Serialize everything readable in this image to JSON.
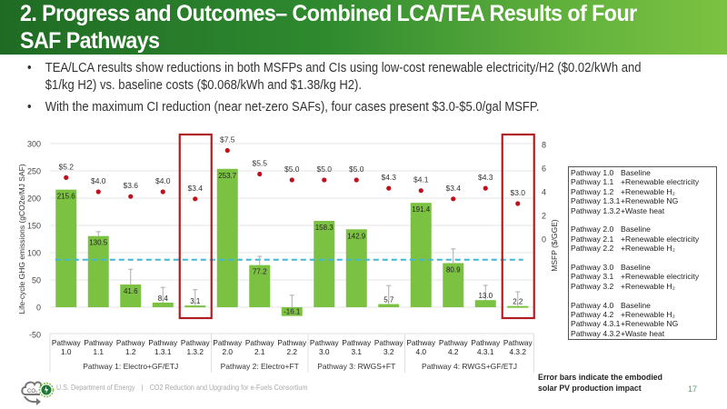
{
  "header": {
    "title_line1": "2. Progress and Outcomes– Combined LCA/TEA Results of Four",
    "title_line2": "SAF Pathways"
  },
  "bullets": [
    {
      "text": "TEA/LCA results show reductions in both MSFPs and CIs using low-cost renewable electricity/H2 ($0.02/kWh and $1/kg H2) vs. baseline costs ($0.068/kWh and $1.38/kg H2)."
    },
    {
      "text": "With the maximum CI reduction (near net-zero SAFs), four cases present $3.0-$5.0/gal MSFP."
    }
  ],
  "bullet_glyph": "•",
  "chart_data": {
    "type": "bar",
    "title": "",
    "categories": [
      "Pathway 1.0",
      "Pathway 1.1",
      "Pathway 1.2",
      "Pathway 1.3.1",
      "Pathway 1.3.2",
      "Pathway 2.0",
      "Pathway 2.1",
      "Pathway 2.2",
      "Pathway 3.0",
      "Pathway 3.1",
      "Pathway 3.2",
      "Pathway 4.0",
      "Pathway 4.2",
      "Pathway 4.3.1",
      "Pathway 4.3.2"
    ],
    "category_lines": [
      [
        "Pathway",
        "1.0"
      ],
      [
        "Pathway",
        "1.1"
      ],
      [
        "Pathway",
        "1.2"
      ],
      [
        "Pathway",
        "1.3.1"
      ],
      [
        "Pathway",
        "1.3.2"
      ],
      [
        "Pathway",
        "2.0"
      ],
      [
        "Pathway",
        "2.1"
      ],
      [
        "Pathway",
        "2.2"
      ],
      [
        "Pathway",
        "3.0"
      ],
      [
        "Pathway",
        "3.1"
      ],
      [
        "Pathway",
        "3.2"
      ],
      [
        "Pathway",
        "4.0"
      ],
      [
        "Pathway",
        "4.2"
      ],
      [
        "Pathway",
        "4.3.1"
      ],
      [
        "Pathway",
        "4.3.2"
      ]
    ],
    "groups": [
      {
        "label": "Pathway 1: Electro+GF/ETJ",
        "start": 0,
        "count": 5
      },
      {
        "label": "Pathway 2: Electro+FT",
        "start": 5,
        "count": 3
      },
      {
        "label": "Pathway 3: RWGS+FT",
        "start": 8,
        "count": 3
      },
      {
        "label": "Pathway 4: RWGS+GF/ETJ",
        "start": 11,
        "count": 4
      }
    ],
    "series": [
      {
        "name": "Life-cycle GHG emissions",
        "axis": "left",
        "kind": "bar",
        "values": [
          215.6,
          130.5,
          41.6,
          8.4,
          3.1,
          253.7,
          77.2,
          -16.1,
          158.3,
          142.9,
          5.7,
          191.4,
          80.9,
          13.0,
          2.2
        ],
        "labels": [
          "215.6",
          "130.5",
          "41.6",
          "8.4",
          "3.1",
          "253.7",
          "77.2",
          "-16.1",
          "158.3",
          "142.9",
          "5.7",
          "191.4",
          "80.9",
          "13.0",
          "2.2"
        ],
        "error_plus": [
          1,
          8,
          28,
          28,
          29,
          1,
          16,
          38,
          1,
          1,
          34,
          1,
          26,
          27,
          26
        ],
        "color": "#7cc242"
      },
      {
        "name": "MSFP",
        "axis": "right",
        "kind": "scatter",
        "values": [
          5.2,
          4.0,
          3.6,
          4.0,
          3.4,
          7.5,
          5.5,
          5.0,
          5.0,
          5.0,
          4.3,
          4.1,
          3.4,
          4.3,
          3.0
        ],
        "labels": [
          "$5.2",
          "$4.0",
          "$3.6",
          "$4.0",
          "$3.4",
          "$7.5",
          "$5.5",
          "$5.0",
          "$5.0",
          "$5.0",
          "$4.3",
          "$4.1",
          "$3.4",
          "$4.3",
          "$3.0"
        ],
        "color": "#c0101c"
      }
    ],
    "reference_line": {
      "value": 87,
      "style": "dashed",
      "color": "#3fb7d9",
      "start_index": 0,
      "end_index": 14
    },
    "highlighted_categories": [
      "Pathway 1.3.2",
      "Pathway 4.3.2"
    ],
    "highlight_color": "#b01e23",
    "ylabel": "Life-cycle GHG emissions (gCO2e/MJ SAF)",
    "ylim": [
      -50,
      300
    ],
    "yticks": [
      -50,
      0,
      50,
      100,
      150,
      200,
      250,
      300
    ],
    "y2label": "MSFP ($/GGE)",
    "y2lim_visible": [
      0,
      8
    ],
    "y2ticks": [
      0,
      2,
      4,
      6,
      8
    ],
    "grid": true,
    "legend_position": "right"
  },
  "legend": {
    "blocks": [
      [
        [
          "Pathway 1.0",
          "Baseline"
        ],
        [
          "Pathway 1.1",
          "+Renewable electricity"
        ],
        [
          "Pathway 1.2",
          "+Renewable H₂"
        ],
        [
          "Pathway 1.3.1",
          "+Renewable NG"
        ],
        [
          "Pathway 1.3.2",
          "+Waste heat"
        ]
      ],
      [
        [
          "Pathway 2.0",
          "Baseline"
        ],
        [
          "Pathway 2.1",
          "+Renewable electricity"
        ],
        [
          "Pathway 2.2",
          "+Renewable H₂"
        ]
      ],
      [
        [
          "Pathway 3.0",
          "Baseline"
        ],
        [
          "Pathway 3.1",
          "+Renewable electricity"
        ],
        [
          "Pathway 3.2",
          "+Renewable H₂"
        ]
      ],
      [
        [
          "Pathway 4.0",
          "Baseline"
        ],
        [
          "Pathway 4.2",
          "+Renewable H₂"
        ],
        [
          "Pathway 4.3.1",
          "+Renewable NG"
        ],
        [
          "Pathway 4.3.2",
          "+Waste heat"
        ]
      ]
    ]
  },
  "note": {
    "line1": "Error bars indicate the embodied",
    "line2": "solar PV production impact"
  },
  "footer": {
    "org": "U.S. Department of Energy",
    "separator": "|",
    "consortium": "CO2 Reduction and Upgrading for e-Fuels Consortium",
    "page": "17",
    "logo_text": "CO₂"
  }
}
